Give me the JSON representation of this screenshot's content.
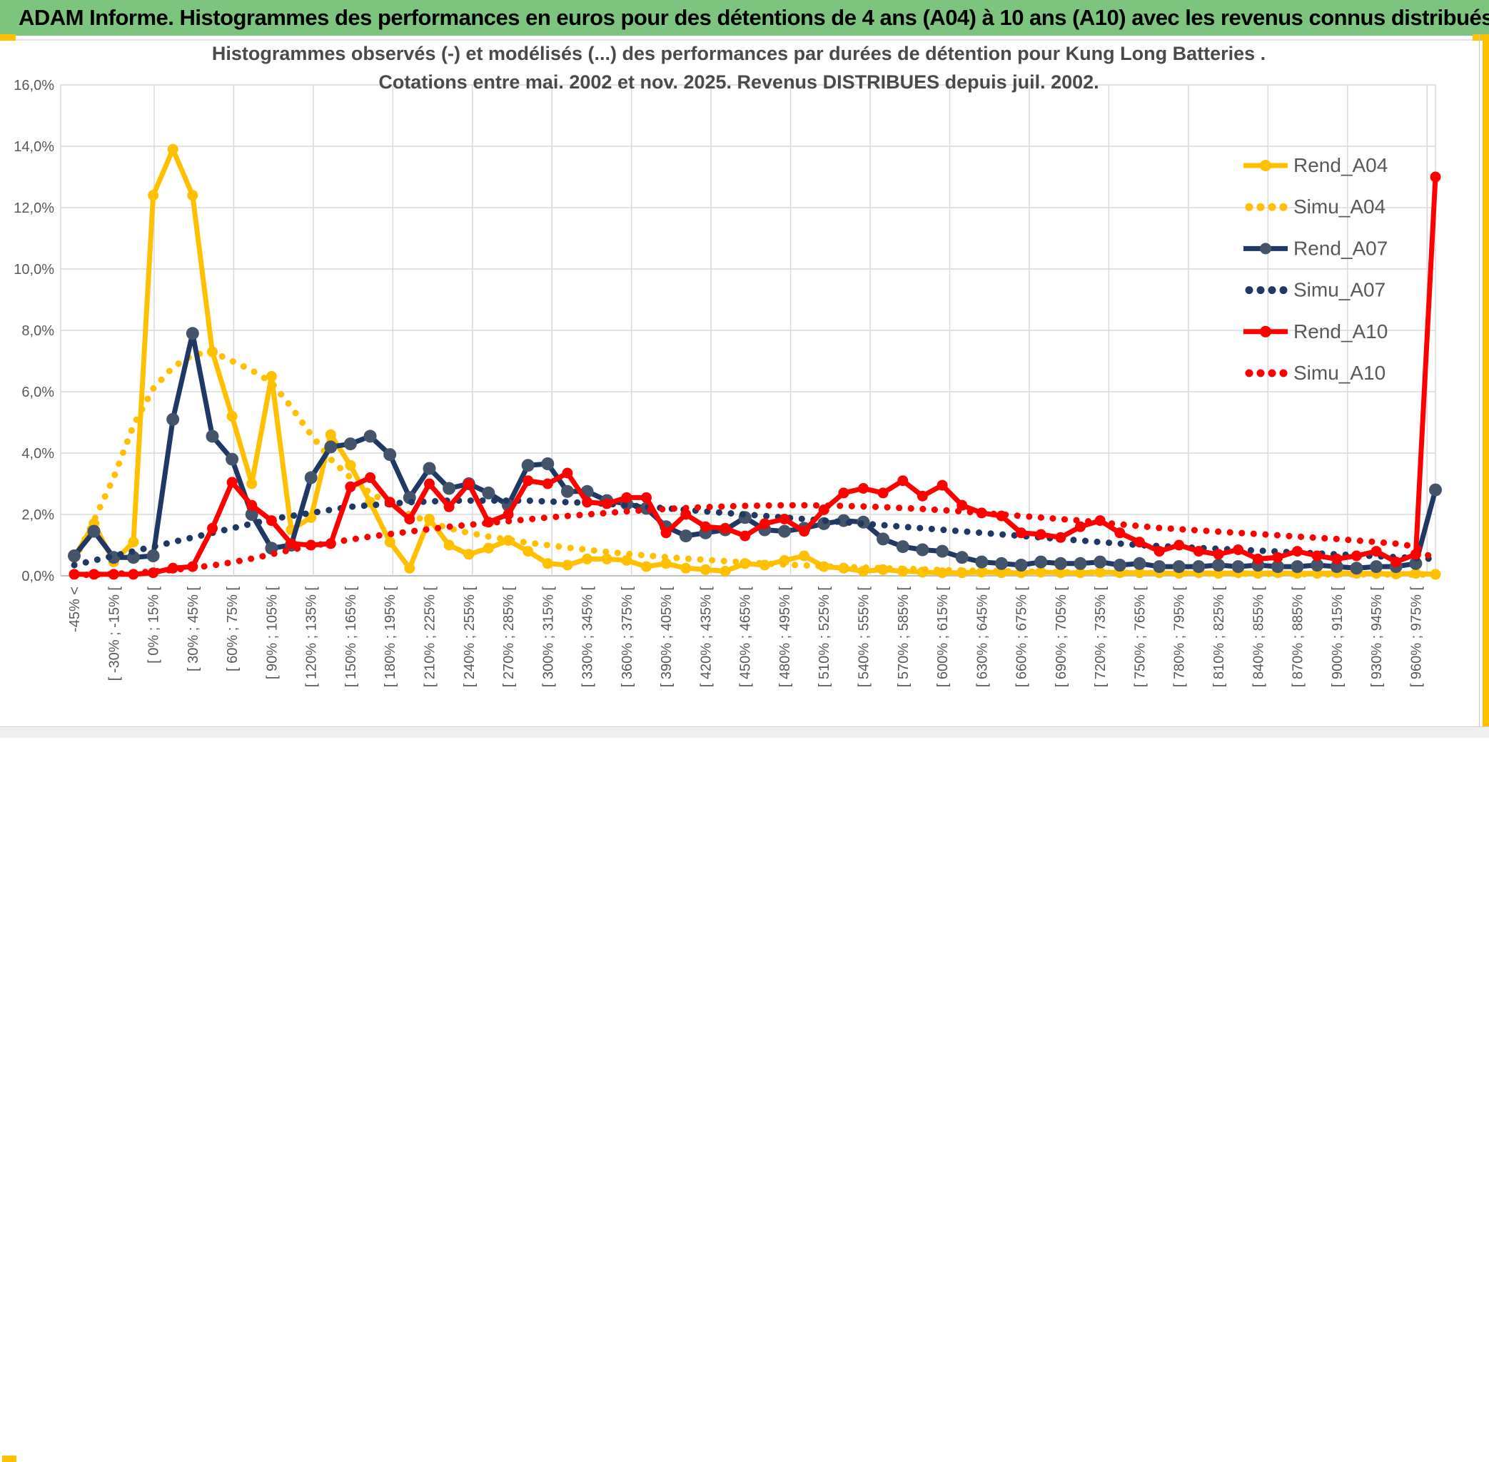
{
  "header": {
    "title": "ADAM Informe. Histogrammes des performances en euros pour des détentions de 4 ans (A04) à 10 ans (A10) avec les revenus connus distribués"
  },
  "colors": {
    "header_green": "#7DC47E",
    "gold_accent": "#FFC000",
    "grid": "#D9D9D9",
    "axis_line": "#BFBFBF",
    "tick_text": "#595959",
    "title_text": "#4a4a4a",
    "bottom_bar_bg": "#efefef"
  },
  "chart_data": {
    "type": "line",
    "title": "Histogrammes observés (-) et modélisés (...) des performances par durées de détention pour Kung Long Batteries .",
    "subtitle": "Cotations entre mai. 2002 et nov. 2025. Revenus DISTRIBUES depuis juil. 2002.",
    "xlabel": "",
    "ylabel": "",
    "ylim": [
      0,
      16
    ],
    "grid": true,
    "legend_position": "right",
    "y_ticks": [
      "0,0%",
      "2,0%",
      "4,0%",
      "6,0%",
      "8,0%",
      "10,0%",
      "12,0%",
      "14,0%",
      "16,0%"
    ],
    "n_points": 70,
    "label_every": 2,
    "categories": [
      "-45% <",
      "[ -30% ; -15% [",
      "[ 0% ; 15% [",
      "[ 30% ; 45% [",
      "[ 60% ; 75% [",
      "[ 90% ; 105% [",
      "[ 120% ; 135% [",
      "[ 150% ; 165% [",
      "[ 180% ; 195% [",
      "[ 210% ; 225% [",
      "[ 240% ; 255% [",
      "[ 270% ; 285% [",
      "[ 300% ; 315% [",
      "[ 330% ; 345% [",
      "[ 360% ; 375% [",
      "[ 390% ; 405% [",
      "[ 420% ; 435% [",
      "[ 450% ; 465% [",
      "[ 480% ; 495% [",
      "[ 510% ; 525% [",
      "[ 540% ; 555% [",
      "[ 570% ; 585% [",
      "[ 600% ; 615% [",
      "[ 630% ; 645% [",
      "[ 660% ; 675% [",
      "[ 690% ; 705% [",
      "[ 720% ; 735% [",
      "[ 750% ; 765% [",
      "[ 780% ; 795% [",
      "[ 810% ; 825% [",
      "[ 840% ; 855% [",
      "[ 870% ; 885% [",
      "[ 900% ; 915% [",
      "[ 930% ; 945% [",
      "[ 960% ; 975% ["
    ],
    "series": [
      {
        "name": "Rend_A04",
        "color": "#FFC000",
        "marker_color": "#FFC000",
        "style": "solid",
        "values": [
          0.6,
          1.7,
          0.45,
          1.1,
          12.4,
          13.9,
          12.4,
          7.3,
          5.2,
          3.0,
          6.5,
          1.5,
          1.9,
          4.6,
          3.6,
          2.4,
          1.1,
          0.25,
          1.85,
          1.0,
          0.7,
          0.9,
          1.15,
          0.8,
          0.4,
          0.35,
          0.55,
          0.55,
          0.5,
          0.3,
          0.4,
          0.25,
          0.2,
          0.15,
          0.4,
          0.35,
          0.5,
          0.65,
          0.3,
          0.25,
          0.15,
          0.2,
          0.15,
          0.12,
          0.1,
          0.1,
          0.12,
          0.1,
          0.1,
          0.12,
          0.1,
          0.1,
          0.12,
          0.1,
          0.1,
          0.1,
          0.08,
          0.1,
          0.08,
          0.1,
          0.08,
          0.1,
          0.08,
          0.08,
          0.1,
          0.08,
          0.08,
          0.06,
          0.08,
          0.05
        ]
      },
      {
        "name": "Simu_A04",
        "color": "#FFC000",
        "style": "dotted",
        "values": [
          0.5,
          1.8,
          3.2,
          4.9,
          6.1,
          6.8,
          7.2,
          7.3,
          7.0,
          6.7,
          6.3,
          5.5,
          4.6,
          3.8,
          3.2,
          2.7,
          2.35,
          2.0,
          1.75,
          1.55,
          1.4,
          1.28,
          1.18,
          1.08,
          1.0,
          0.92,
          0.85,
          0.78,
          0.72,
          0.66,
          0.61,
          0.56,
          0.52,
          0.48,
          0.44,
          0.4,
          0.37,
          0.34,
          0.31,
          0.29,
          0.27,
          0.25,
          0.23,
          0.21,
          0.19,
          0.18,
          0.16,
          0.15,
          0.14,
          0.13,
          0.12,
          0.11,
          0.1,
          0.1,
          0.09,
          0.09,
          0.08,
          0.08,
          0.07,
          0.07,
          0.06,
          0.06,
          0.06,
          0.05,
          0.05,
          0.05,
          0.05,
          0.04,
          0.04,
          0.04
        ]
      },
      {
        "name": "Rend_A07",
        "color": "#1F3864",
        "marker_color": "#44546A",
        "style": "solid",
        "values": [
          0.65,
          1.45,
          0.6,
          0.6,
          0.65,
          5.1,
          7.9,
          4.55,
          3.8,
          2.0,
          0.9,
          1.0,
          3.2,
          4.2,
          4.3,
          4.55,
          3.95,
          2.55,
          3.5,
          2.85,
          3.0,
          2.7,
          2.3,
          3.6,
          3.65,
          2.75,
          2.75,
          2.45,
          2.35,
          2.2,
          1.6,
          1.3,
          1.4,
          1.5,
          1.9,
          1.5,
          1.45,
          1.55,
          1.7,
          1.8,
          1.75,
          1.2,
          0.95,
          0.85,
          0.8,
          0.6,
          0.45,
          0.4,
          0.35,
          0.45,
          0.4,
          0.4,
          0.45,
          0.35,
          0.4,
          0.3,
          0.3,
          0.3,
          0.35,
          0.3,
          0.35,
          0.3,
          0.3,
          0.35,
          0.3,
          0.25,
          0.3,
          0.3,
          0.4,
          2.8
        ]
      },
      {
        "name": "Simu_A07",
        "color": "#1F3864",
        "style": "dotted",
        "values": [
          0.35,
          0.5,
          0.65,
          0.8,
          0.95,
          1.1,
          1.25,
          1.4,
          1.55,
          1.7,
          1.85,
          1.95,
          2.05,
          2.15,
          2.25,
          2.3,
          2.35,
          2.4,
          2.42,
          2.45,
          2.45,
          2.45,
          2.45,
          2.45,
          2.42,
          2.4,
          2.38,
          2.35,
          2.3,
          2.25,
          2.2,
          2.15,
          2.1,
          2.05,
          2.0,
          1.95,
          1.9,
          1.85,
          1.8,
          1.75,
          1.7,
          1.65,
          1.6,
          1.55,
          1.5,
          1.45,
          1.4,
          1.35,
          1.3,
          1.25,
          1.2,
          1.15,
          1.1,
          1.05,
          1.0,
          0.97,
          0.94,
          0.91,
          0.88,
          0.85,
          0.82,
          0.79,
          0.76,
          0.73,
          0.7,
          0.67,
          0.64,
          0.61,
          0.58,
          0.55
        ]
      },
      {
        "name": "Rend_A10",
        "color": "#FF0000",
        "marker_color": "#FF0000",
        "style": "solid",
        "values": [
          0.05,
          0.05,
          0.05,
          0.05,
          0.1,
          0.25,
          0.3,
          1.55,
          3.05,
          2.3,
          1.8,
          1.05,
          1.0,
          1.05,
          2.9,
          3.2,
          2.4,
          1.85,
          3.0,
          2.25,
          3.0,
          1.75,
          2.0,
          3.1,
          3.0,
          3.35,
          2.4,
          2.35,
          2.55,
          2.55,
          1.4,
          2.0,
          1.6,
          1.55,
          1.3,
          1.7,
          1.85,
          1.45,
          2.15,
          2.7,
          2.85,
          2.7,
          3.1,
          2.6,
          2.95,
          2.3,
          2.05,
          1.95,
          1.4,
          1.35,
          1.25,
          1.6,
          1.8,
          1.4,
          1.1,
          0.8,
          1.0,
          0.8,
          0.7,
          0.85,
          0.55,
          0.6,
          0.8,
          0.65,
          0.55,
          0.65,
          0.8,
          0.45,
          0.7,
          13.0
        ]
      },
      {
        "name": "Simu_A10",
        "color": "#FF0000",
        "style": "dotted",
        "values": [
          0.02,
          0.04,
          0.06,
          0.1,
          0.14,
          0.19,
          0.26,
          0.34,
          0.44,
          0.56,
          0.7,
          0.85,
          0.97,
          1.08,
          1.18,
          1.28,
          1.36,
          1.44,
          1.52,
          1.6,
          1.66,
          1.72,
          1.78,
          1.84,
          1.9,
          1.95,
          2.0,
          2.05,
          2.1,
          2.14,
          2.18,
          2.21,
          2.24,
          2.26,
          2.28,
          2.29,
          2.3,
          2.3,
          2.29,
          2.28,
          2.26,
          2.24,
          2.21,
          2.18,
          2.14,
          2.1,
          2.05,
          2.0,
          1.95,
          1.9,
          1.85,
          1.8,
          1.74,
          1.68,
          1.62,
          1.56,
          1.52,
          1.48,
          1.44,
          1.4,
          1.36,
          1.32,
          1.28,
          1.24,
          1.2,
          1.15,
          1.1,
          1.05,
          0.95,
          0.5
        ]
      }
    ]
  }
}
